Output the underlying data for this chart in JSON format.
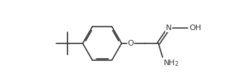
{
  "bg_color": "#ffffff",
  "line_color": "#333333",
  "line_width": 1.2,
  "dbo": 0.018,
  "fs": 7.5,
  "fig_width": 3.4,
  "fig_height": 1.2,
  "dpi": 100,
  "xlim": [
    0,
    3.4
  ],
  "ylim": [
    0,
    1.2
  ]
}
